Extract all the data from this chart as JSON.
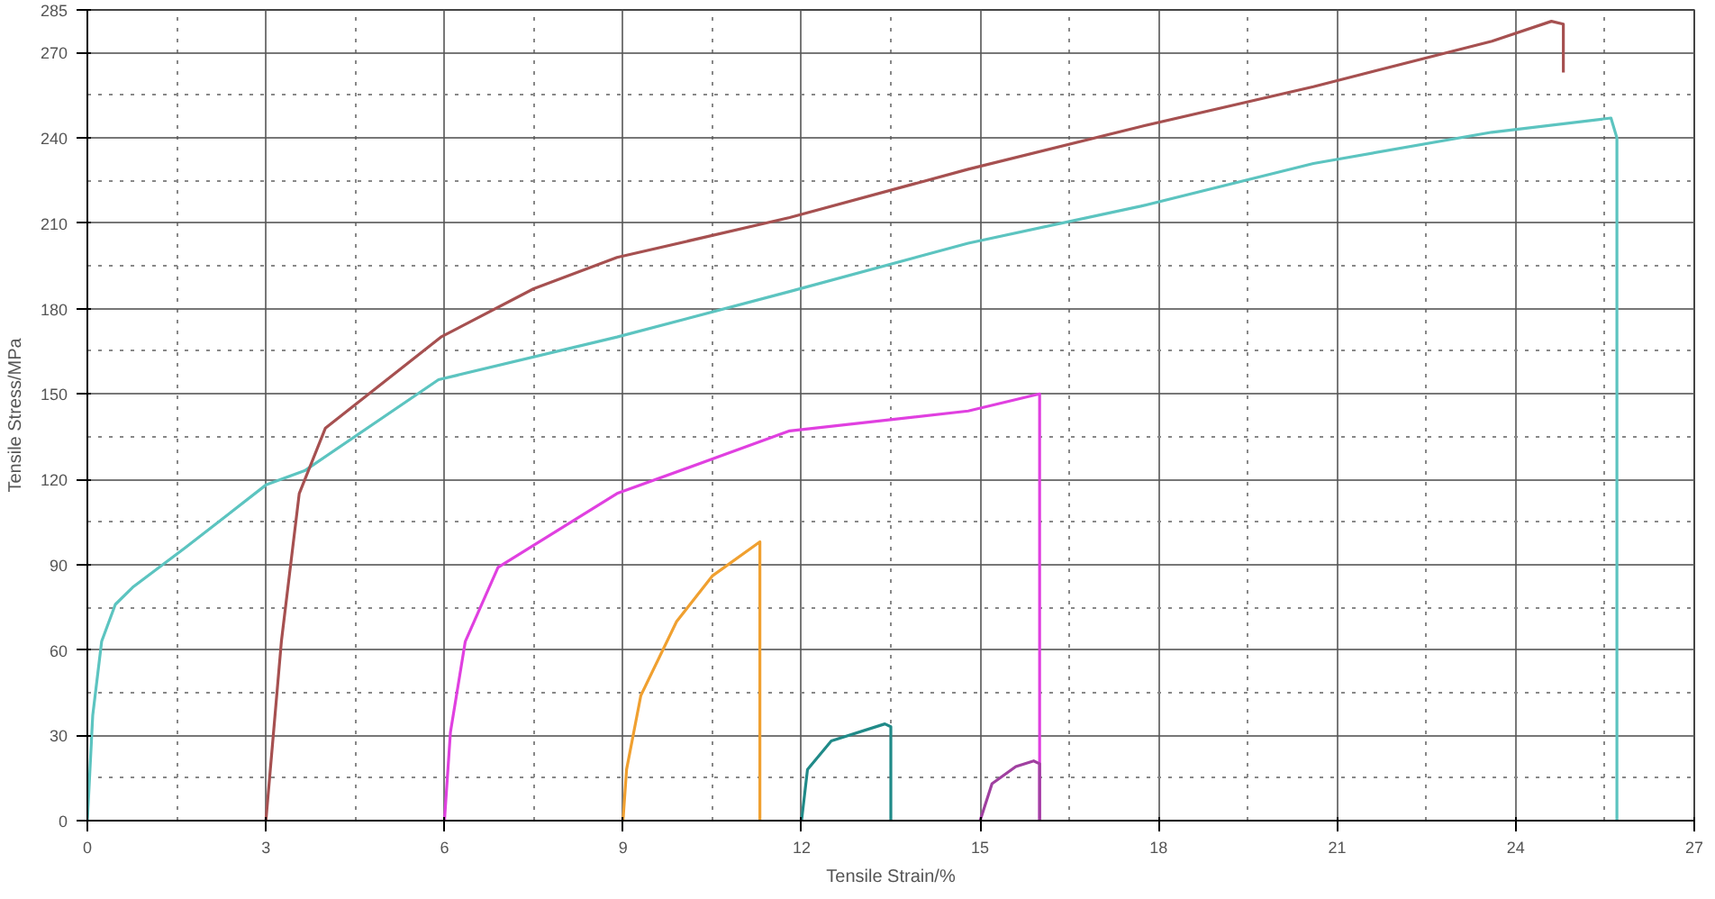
{
  "chart_data": {
    "type": "line",
    "xlabel": "Tensile Strain/%",
    "ylabel": "Tensile Stress/MPa",
    "xlim": [
      0,
      27
    ],
    "ylim": [
      0,
      285
    ],
    "xticks": [
      0,
      3,
      6,
      9,
      12,
      15,
      18,
      21,
      24,
      27
    ],
    "yticks": [
      0,
      30,
      60,
      90,
      120,
      150,
      180,
      210,
      240,
      270,
      285
    ],
    "grid": true,
    "marker": "none",
    "line_style": "solid",
    "series": [
      {
        "color": "#5cc4c0",
        "x": [
          0,
          0.09,
          0.24,
          0.47,
          0.76,
          1.65,
          3.0,
          3.65,
          5.9,
          8.9,
          11.8,
          14.8,
          17.7,
          20.6,
          23.6,
          25.6,
          25.7,
          25.7
        ],
        "values": [
          0,
          37,
          63,
          76,
          82,
          96,
          118,
          123,
          155,
          170,
          186,
          203,
          216,
          231,
          242,
          247,
          240,
          0
        ]
      },
      {
        "color": "#a65050",
        "x": [
          3.0,
          3.26,
          3.56,
          4.0,
          5.94,
          7.5,
          8.9,
          11.8,
          14.8,
          17.7,
          20.6,
          23.6,
          24.6,
          24.8,
          24.8
        ],
        "values": [
          0,
          63,
          115,
          138,
          170,
          187,
          198,
          212,
          229,
          244,
          258,
          274,
          281,
          280,
          263
        ]
      },
      {
        "color": "#e040e0",
        "x": [
          6.0,
          6.1,
          6.35,
          6.9,
          8.9,
          11.8,
          14.8,
          16.0,
          16.0
        ],
        "values": [
          0,
          31,
          63,
          89,
          115,
          137,
          144,
          150,
          0
        ]
      },
      {
        "color": "#f0a030",
        "x": [
          9.0,
          9.06,
          9.3,
          9.9,
          10.5,
          11.3,
          11.3
        ],
        "values": [
          0,
          18,
          44,
          70,
          86,
          98,
          0
        ]
      },
      {
        "color": "#208a88",
        "x": [
          12.0,
          12.1,
          12.5,
          13.4,
          13.5,
          13.5
        ],
        "values": [
          0,
          18,
          28,
          34,
          33,
          0
        ]
      },
      {
        "color": "#a040a0",
        "x": [
          15.0,
          15.2,
          15.6,
          15.9,
          16.0,
          16.0
        ],
        "values": [
          0,
          13,
          19,
          21,
          20,
          0
        ]
      }
    ]
  }
}
